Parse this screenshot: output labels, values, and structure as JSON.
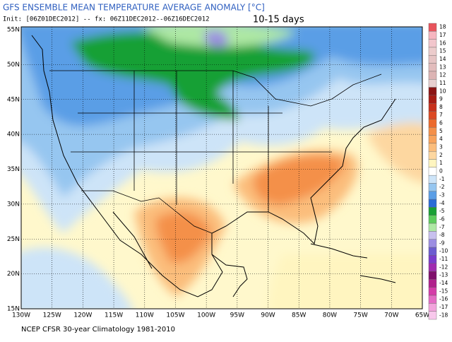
{
  "header": {
    "title": "GFS ENSEMBLE MEAN TEMPERATURE AVERAGE ANOMALY [°C]",
    "init": "Init: [06Z01DEC2012] -- fx: 06Z11DEC2012--06Z16DEC2012",
    "period": "10-15 days"
  },
  "map": {
    "lat_labels": [
      "55N",
      "50N",
      "45N",
      "40N",
      "35N",
      "30N",
      "25N",
      "20N",
      "15N"
    ],
    "lon_labels": [
      "130W",
      "125W",
      "120W",
      "115W",
      "110W",
      "105W",
      "100W",
      "95W",
      "90W",
      "85W",
      "80W",
      "75W",
      "70W",
      "65W"
    ]
  },
  "colorbar": {
    "levels": [
      18,
      17,
      16,
      15,
      14,
      13,
      12,
      11,
      10,
      9,
      8,
      7,
      6,
      5,
      4,
      3,
      2,
      1,
      0,
      -1,
      -2,
      -3,
      -4,
      -5,
      -6,
      -7,
      -8,
      -9,
      -10,
      -11,
      -12,
      -13,
      -14,
      -15,
      -16,
      -17,
      -18
    ],
    "colors": [
      "#e8545c",
      "#f6b6c0",
      "#f2c6cc",
      "#eccccc",
      "#e6c4c4",
      "#e2bcbc",
      "#dcb4b4",
      "#e8d0d0",
      "#8c1414",
      "#a81c14",
      "#c8301c",
      "#dc4a24",
      "#ec6a2c",
      "#f4904a",
      "#f8a35c",
      "#fbbd7c",
      "#fdd7a0",
      "#fff5c0",
      "#ffffff",
      "#cde4f8",
      "#96c6f0",
      "#5a9ee6",
      "#2a6cd6",
      "#18a034",
      "#5ccc5c",
      "#aee8a4",
      "#c8c0ee",
      "#9c8ee2",
      "#6c5cd0",
      "#7a3ccc",
      "#a02cb0",
      "#80106c",
      "#b0208c",
      "#d43ca8",
      "#e46cc4",
      "#f2a4dc",
      "#f8c8ec"
    ]
  },
  "footer": "NCEP CFSR 30-year Climatology 1981-2010"
}
